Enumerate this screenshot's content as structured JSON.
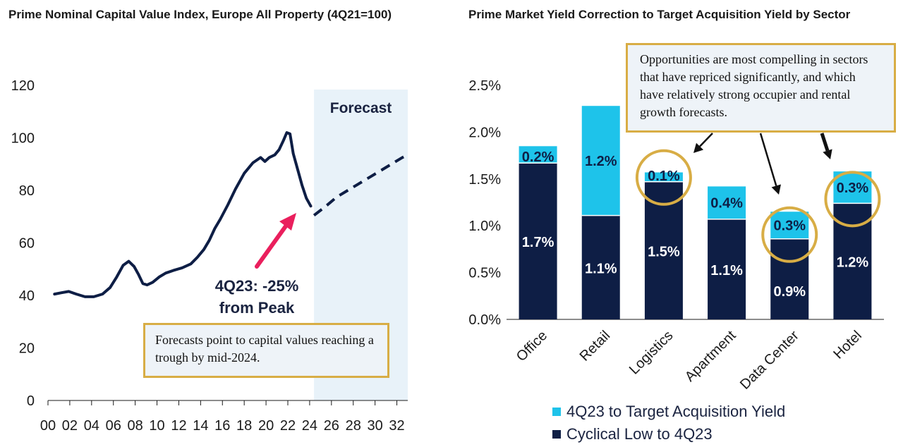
{
  "colors": {
    "navy": "#0e1e45",
    "cyan": "#1ec3ea",
    "forecast_bg": "#e8f2f9",
    "gold": "#d8ad45",
    "arrow": "#ea1f5d"
  },
  "chart_data": [
    {
      "type": "line",
      "title": "Prime Nominal Capital Value Index, Europe All Property (4Q21=100)",
      "ylim": [
        0,
        120
      ],
      "y_ticks": [
        "0",
        "20",
        "40",
        "60",
        "80",
        "100",
        "120"
      ],
      "xlim": [
        0,
        33
      ],
      "x_ticks": [
        "00",
        "02",
        "04",
        "06",
        "08",
        "10",
        "12",
        "14",
        "16",
        "18",
        "20",
        "22",
        "24",
        "26",
        "28",
        "30",
        "32"
      ],
      "forecast_start": 24.4,
      "forecast_label": "Forecast",
      "series": [
        {
          "style": "actual",
          "x": [
            0.6,
            1.2,
            1.9,
            2.6,
            3.4,
            4.2,
            5.0,
            5.7,
            6.3,
            6.9,
            7.4,
            7.9,
            8.3,
            8.7,
            9.1,
            9.6,
            10.2,
            10.8,
            11.5,
            12.3,
            13.1,
            13.7,
            14.3,
            14.8,
            15.3,
            15.8,
            16.5,
            17.2,
            18.0,
            18.8,
            19.5,
            19.9,
            20.3,
            20.8,
            21.2,
            21.6,
            21.9,
            22.2,
            22.5,
            22.9,
            23.3,
            23.7,
            24.1
          ],
          "y": [
            40.5,
            41,
            41.5,
            40.5,
            39.5,
            39.5,
            40.5,
            43,
            47,
            51.5,
            53,
            51,
            48,
            44.5,
            44,
            45,
            47,
            48.5,
            49.5,
            50.5,
            52,
            54.5,
            57.5,
            61,
            65.5,
            69,
            74.5,
            80.5,
            86.5,
            90.5,
            92.5,
            91,
            92.5,
            93.5,
            95.5,
            99,
            102,
            101.5,
            94,
            88,
            82,
            77,
            74
          ]
        },
        {
          "style": "forecast",
          "x": [
            24.4,
            25.5,
            26.5,
            27.5,
            28.5,
            29.5,
            30.5,
            31.5,
            32.5,
            33
          ],
          "y": [
            70.5,
            74,
            77.5,
            80,
            82.5,
            85,
            87.5,
            90,
            92.5,
            93.5
          ]
        }
      ],
      "annotation": {
        "lines": [
          "4Q23: -25%",
          "from Peak"
        ]
      },
      "note": "Forecasts point to capital values reaching a trough by mid-2024."
    },
    {
      "type": "bar",
      "stacked": true,
      "title": "Prime Market Yield Correction to Target Acquisition Yield by Sector",
      "categories": [
        "Office",
        "Retail",
        "Logistics",
        "Apartment",
        "Data Center",
        "Hotel"
      ],
      "ylim": [
        0,
        2.5
      ],
      "y_ticks": [
        "0.0%",
        "0.5%",
        "1.0%",
        "1.5%",
        "2.0%",
        "2.5%"
      ],
      "series": [
        {
          "name": "Cyclical Low to 4Q23",
          "values": [
            1.67,
            1.11,
            1.47,
            1.07,
            0.86,
            1.24
          ],
          "labels": [
            "1.7%",
            "1.1%",
            "1.5%",
            "1.1%",
            "0.9%",
            "1.2%"
          ]
        },
        {
          "name": "4Q23 to Target Acquisition Yield",
          "values": [
            0.18,
            1.17,
            0.1,
            0.35,
            0.29,
            0.34
          ],
          "labels": [
            "0.2%",
            "1.2%",
            "0.1%",
            "0.4%",
            "0.3%",
            "0.3%"
          ]
        }
      ],
      "highlighted": [
        "Logistics",
        "Data Center",
        "Hotel"
      ],
      "legend_position": "bottom",
      "note": "Opportunities are most compelling in sectors that have repriced significantly, and which have relatively strong occupier and rental growth forecasts."
    }
  ]
}
